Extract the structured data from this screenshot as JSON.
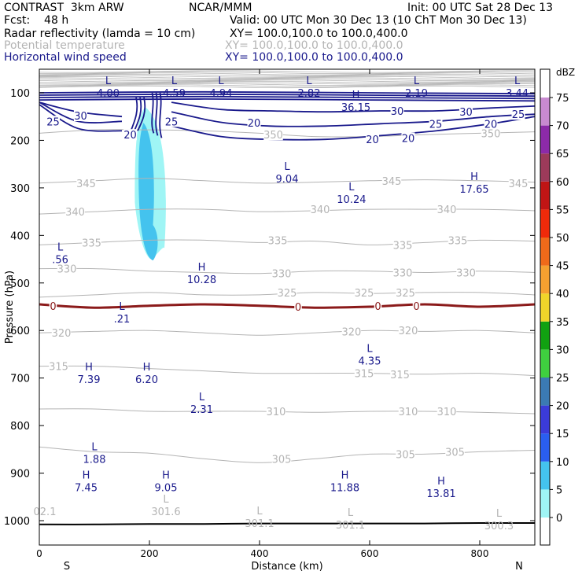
{
  "header": {
    "left_title": "CONTRAST  3km ARW",
    "center_title": "NCAR/MMM",
    "init": "Init: 00 UTC Sat 28 Dec 13",
    "fcst": "Fcst:    48 h",
    "valid": "Valid: 00 UTC Mon 30 Dec 13 (10 ChT Mon 30 Dec 13)",
    "field1_name": "Radar reflectivity (lamda = 10 cm)",
    "field1_xy": "XY= 100.0,100.0 to 100.0,400.0",
    "field2_name": "Potential temperature",
    "field2_xy": "XY= 100.0,100.0 to 100.0,400.0",
    "field3_name": "Horizontal wind speed",
    "field3_xy": "XY= 100.0,100.0 to 100.0,400.0"
  },
  "colors": {
    "theta": "#b4b4b4",
    "wind": "#1a1a8c",
    "zero_line": "#8b1a1a",
    "refl_light": "#9ff5f5",
    "refl_mid": "#44c3ee"
  },
  "chart_data": {
    "type": "contour-cross-section",
    "xlabel": "Distance (km)",
    "ylabel": "Pressure (hPa)",
    "xlim": [
      0,
      900
    ],
    "ylim": [
      1040,
      60
    ],
    "x_ticks": [
      0,
      200,
      400,
      600,
      800
    ],
    "y_ticks": [
      100,
      200,
      300,
      400,
      500,
      600,
      700,
      800,
      900,
      1000
    ],
    "x_end_labels": {
      "left": "S",
      "right": "N"
    },
    "colorbar": {
      "unit": "dBZ",
      "levels": [
        0,
        5,
        10,
        15,
        20,
        25,
        30,
        35,
        40,
        45,
        50,
        55,
        60,
        65,
        70,
        75
      ],
      "colors": [
        "#ffffff",
        "#9ff5f5",
        "#44c3ee",
        "#2a5ef0",
        "#3b3bd9",
        "#3b7ab3",
        "#3fcf3f",
        "#11a111",
        "#f0d52a",
        "#f5a030",
        "#f06a1a",
        "#f02a0a",
        "#c01515",
        "#9c3a5a",
        "#8c2aa8",
        "#c88ad0"
      ]
    },
    "theta_contours": [
      {
        "value": 350,
        "p": [
          185,
          178,
          178,
          180,
          185,
          192,
          192,
          188,
          185,
          182
        ]
      },
      {
        "value": 345,
        "p": [
          290,
          285,
          280,
          285,
          290,
          288,
          285,
          283,
          285,
          288
        ]
      },
      {
        "value": 340,
        "p": [
          355,
          350,
          345,
          345,
          350,
          348,
          345,
          345,
          345,
          348
        ]
      },
      {
        "value": 335,
        "p": [
          420,
          415,
          410,
          410,
          415,
          412,
          420,
          415,
          410,
          412
        ]
      },
      {
        "value": 330,
        "p": [
          470,
          470,
          475,
          478,
          480,
          475,
          475,
          478,
          475,
          478
        ]
      },
      {
        "value": 325,
        "p": [
          530,
          525,
          520,
          525,
          525,
          520,
          522,
          520,
          520,
          525
        ]
      },
      {
        "value": 320,
        "p": [
          605,
          602,
          600,
          605,
          610,
          605,
          600,
          602,
          600,
          605
        ]
      },
      {
        "value": 315,
        "p": [
          675,
          675,
          680,
          685,
          690,
          690,
          690,
          692,
          690,
          695
        ]
      },
      {
        "value": 310,
        "p": [
          765,
          765,
          770,
          770,
          770,
          772,
          770,
          770,
          772,
          775
        ]
      },
      {
        "value": 305,
        "p": [
          845,
          855,
          858,
          870,
          878,
          870,
          860,
          860,
          855,
          852
        ]
      }
    ],
    "wind_contours": [
      {
        "value": 30,
        "p_left": [
          120,
          140,
          150
        ],
        "p_right": [
          120,
          135,
          138,
          140,
          138,
          138,
          132,
          128
        ]
      },
      {
        "value": 25,
        "p_left": [
          120,
          160,
          160
        ],
        "p_right": [
          140,
          162,
          170,
          170,
          165,
          160,
          150,
          145
        ]
      },
      {
        "value": 20,
        "p_left": [
          125,
          175,
          180
        ],
        "p_right": [
          170,
          192,
          198,
          198,
          190,
          180,
          165,
          150
        ]
      }
    ],
    "zero_wind_line_p": [
      545,
      552,
      548,
      545,
      548,
      552,
      550,
      545,
      550,
      545
    ],
    "surface_line_p": [
      1008,
      1008,
      1007,
      1007,
      1006,
      1006,
      1006,
      1006,
      1005,
      1005
    ],
    "contour_x": [
      0,
      100,
      200,
      300,
      400,
      500,
      600,
      700,
      800,
      900
    ],
    "theta_labels": [
      {
        "text": "350",
        "x": 425,
        "p": 188
      },
      {
        "text": "350",
        "x": 820,
        "p": 185
      },
      {
        "text": "345",
        "x": 85,
        "p": 290
      },
      {
        "text": "345",
        "x": 640,
        "p": 285
      },
      {
        "text": "345",
        "x": 870,
        "p": 290
      },
      {
        "text": "340",
        "x": 65,
        "p": 350
      },
      {
        "text": "340",
        "x": 510,
        "p": 345
      },
      {
        "text": "340",
        "x": 740,
        "p": 345
      },
      {
        "text": "335",
        "x": 95,
        "p": 415
      },
      {
        "text": "335",
        "x": 433,
        "p": 410
      },
      {
        "text": "335",
        "x": 660,
        "p": 420
      },
      {
        "text": "335",
        "x": 760,
        "p": 410
      },
      {
        "text": "330",
        "x": 50,
        "p": 470
      },
      {
        "text": "330",
        "x": 440,
        "p": 480
      },
      {
        "text": "330",
        "x": 660,
        "p": 478
      },
      {
        "text": "330",
        "x": 775,
        "p": 478
      },
      {
        "text": "325",
        "x": 450,
        "p": 520
      },
      {
        "text": "325",
        "x": 590,
        "p": 520
      },
      {
        "text": "325",
        "x": 665,
        "p": 520
      },
      {
        "text": "320",
        "x": 40,
        "p": 605
      },
      {
        "text": "320",
        "x": 567,
        "p": 602
      },
      {
        "text": "320",
        "x": 670,
        "p": 600
      },
      {
        "text": "315",
        "x": 35,
        "p": 675
      },
      {
        "text": "315",
        "x": 590,
        "p": 690
      },
      {
        "text": "315",
        "x": 655,
        "p": 692
      },
      {
        "text": "310",
        "x": 430,
        "p": 770
      },
      {
        "text": "310",
        "x": 670,
        "p": 770
      },
      {
        "text": "310",
        "x": 740,
        "p": 770
      },
      {
        "text": "305",
        "x": 440,
        "p": 870
      },
      {
        "text": "305",
        "x": 665,
        "p": 860
      },
      {
        "text": "305",
        "x": 755,
        "p": 855
      }
    ],
    "wind_labels": [
      {
        "text": "30",
        "x": 75,
        "p": 148
      },
      {
        "text": "30",
        "x": 650,
        "p": 138
      },
      {
        "text": "30",
        "x": 775,
        "p": 140
      },
      {
        "text": "25",
        "x": 25,
        "p": 160
      },
      {
        "text": "25",
        "x": 240,
        "p": 160
      },
      {
        "text": "25",
        "x": 720,
        "p": 165
      },
      {
        "text": "25",
        "x": 870,
        "p": 145
      },
      {
        "text": "20",
        "x": 165,
        "p": 188
      },
      {
        "text": "20",
        "x": 390,
        "p": 163
      },
      {
        "text": "20",
        "x": 605,
        "p": 198
      },
      {
        "text": "20",
        "x": 670,
        "p": 195
      },
      {
        "text": "20",
        "x": 820,
        "p": 165
      }
    ],
    "zero_labels": [
      {
        "text": "0",
        "x": 25,
        "p": 548
      },
      {
        "text": "0",
        "x": 470,
        "p": 550
      },
      {
        "text": "0",
        "x": 615,
        "p": 548
      },
      {
        "text": "0",
        "x": 685,
        "p": 548
      }
    ],
    "extrema_wind": [
      {
        "kind": "L",
        "value": "4.00",
        "x": 125,
        "p": 95
      },
      {
        "kind": "L",
        "value": "4.59",
        "x": 245,
        "p": 95
      },
      {
        "kind": "L",
        "value": "4.94",
        "x": 330,
        "p": 95
      },
      {
        "kind": "L",
        "value": "2.82",
        "x": 490,
        "p": 95
      },
      {
        "kind": "L",
        "value": "2.19",
        "x": 685,
        "p": 95
      },
      {
        "kind": "L",
        "value": "3.44",
        "x": 868,
        "p": 95
      },
      {
        "kind": "H",
        "value": "36.15",
        "x": 575,
        "p": 125
      },
      {
        "kind": "L",
        "value": "9.04",
        "x": 450,
        "p": 275
      },
      {
        "kind": "L",
        "value": "10.24",
        "x": 567,
        "p": 318
      },
      {
        "kind": "H",
        "value": "17.65",
        "x": 790,
        "p": 297
      },
      {
        "kind": "L",
        "value": ".56",
        "x": 38,
        "p": 445
      },
      {
        "kind": "H",
        "value": "10.28",
        "x": 295,
        "p": 487
      },
      {
        "kind": "L",
        "value": ".21",
        "x": 150,
        "p": 570
      },
      {
        "kind": "L",
        "value": "4.35",
        "x": 600,
        "p": 658
      },
      {
        "kind": "H",
        "value": "7.39",
        "x": 90,
        "p": 697
      },
      {
        "kind": "H",
        "value": "6.20",
        "x": 195,
        "p": 697
      },
      {
        "kind": "L",
        "value": "2.31",
        "x": 295,
        "p": 760
      },
      {
        "kind": "L",
        "value": "1.88",
        "x": 100,
        "p": 865
      },
      {
        "kind": "H",
        "value": "7.45",
        "x": 85,
        "p": 925
      },
      {
        "kind": "H",
        "value": "9.05",
        "x": 230,
        "p": 925
      },
      {
        "kind": "H",
        "value": "11.88",
        "x": 555,
        "p": 925
      },
      {
        "kind": "H",
        "value": "13.81",
        "x": 730,
        "p": 937
      }
    ],
    "extrema_theta": [
      {
        "kind": "",
        "value": "02.1",
        "x": 10,
        "p": 975
      },
      {
        "kind": "L",
        "value": "301.6",
        "x": 230,
        "p": 975
      },
      {
        "kind": "L",
        "value": "301.1",
        "x": 400,
        "p": 1000
      },
      {
        "kind": "L",
        "value": "301.1",
        "x": 565,
        "p": 1003
      },
      {
        "kind": "L",
        "value": "300.3",
        "x": 835,
        "p": 1005
      }
    ],
    "reflectivity_region": {
      "x_range_km": [
        175,
        230
      ],
      "p_range_hPa": [
        130,
        450
      ]
    }
  }
}
